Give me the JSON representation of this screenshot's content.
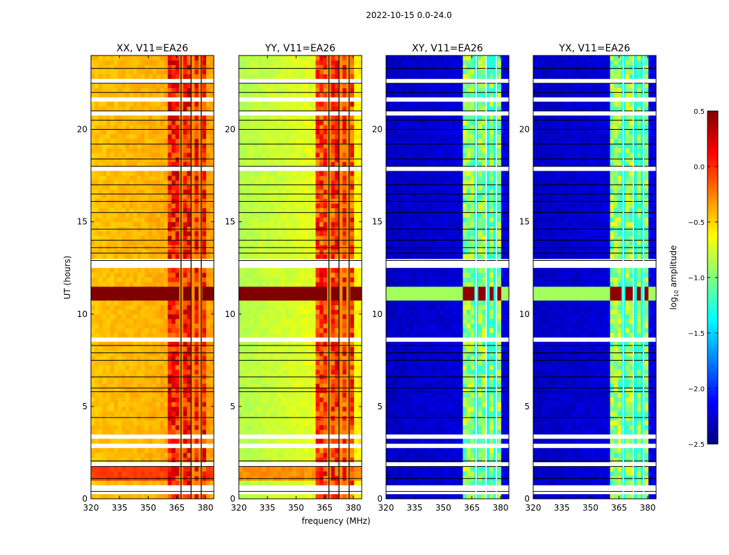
{
  "chart_data": {
    "type": "heatmap",
    "suptitle": "2022-10-15 0.0-24.0",
    "xlabel": "frequency (MHz)",
    "ylabel": "UT (hours)",
    "xlim": [
      320,
      384.4
    ],
    "ylim": [
      0,
      24
    ],
    "xticks": [
      320,
      335,
      350,
      365,
      380
    ],
    "yticks": [
      0,
      5,
      10,
      15,
      20
    ],
    "colorbar": {
      "label_main": "log",
      "label_sub": "10",
      "label_rest": " amplitude",
      "range": [
        -2.5,
        0.5
      ],
      "ticks": [
        0.5,
        0.0,
        -0.5,
        -1.0,
        -1.5,
        -2.0,
        -2.5
      ],
      "tick_labels": [
        "0.5",
        "0.0",
        "−0.5",
        "−1.0",
        "−1.5",
        "−2.0",
        "−2.5"
      ],
      "colormap": "jet"
    },
    "panels": [
      {
        "title": "XX, V11=EA26",
        "background": -0.45,
        "background_high_freq": -0.35,
        "rfi_band_mhz": [
          361,
          380.5
        ],
        "rfi_band_level": 0.05,
        "orange_rows_hours": [
          1.0,
          1.7
        ],
        "orange_level": -0.05,
        "strong_rfi_hours": [
          10.8,
          11.4
        ],
        "strong_rfi_level": 0.5,
        "strong_rfi_band_level": 0.5
      },
      {
        "title": "YY, V11=EA26",
        "background": -0.85,
        "background_high_freq": -0.6,
        "rfi_band_mhz": [
          361,
          380.5
        ],
        "rfi_band_level": -0.05,
        "orange_rows_hours": [
          1.0,
          1.7
        ],
        "orange_level": -0.3,
        "strong_rfi_hours": [
          10.8,
          11.4
        ],
        "strong_rfi_level": 0.5,
        "strong_rfi_band_level": 0.5
      },
      {
        "title": "XY, V11=EA26",
        "background": -2.3,
        "background_high_freq": -2.2,
        "rfi_band_mhz": [
          361,
          380.5
        ],
        "rfi_band_level": -0.95,
        "orange_rows_hours": [],
        "orange_level": -2.3,
        "strong_rfi_hours": [
          10.8,
          11.4
        ],
        "strong_rfi_level": -0.9,
        "strong_rfi_band_level": 0.45
      },
      {
        "title": "YX, V11=EA26",
        "background": -2.3,
        "background_high_freq": -2.2,
        "rfi_band_mhz": [
          361,
          380.5
        ],
        "rfi_band_level": -0.95,
        "orange_rows_hours": [],
        "orange_level": -2.3,
        "strong_rfi_hours": [
          10.8,
          11.4
        ],
        "strong_rfi_level": -0.9,
        "strong_rfi_band_level": 0.45
      }
    ],
    "flagged_hours": [
      0.3,
      0.7,
      1.8,
      2.8,
      3.3,
      8.5,
      8.6,
      12.6,
      12.9,
      13.5,
      15.0,
      17.9,
      20.8,
      21.7,
      22.6,
      23.0,
      23.5
    ],
    "flag_line_hours": [
      0.4,
      1.1,
      1.75,
      2.05,
      4.4,
      5.8,
      6.0,
      6.6,
      7.5,
      7.9,
      8.3,
      12.9,
      13.3,
      13.6,
      14.0,
      14.6,
      15.5,
      16.1,
      16.5,
      17.0,
      18.0,
      18.4,
      19.2,
      20.0,
      20.5,
      21.0,
      22.0,
      22.5,
      23.3
    ],
    "channel_gap_mhz": [
      367.2,
      372.5,
      377.8
    ]
  }
}
